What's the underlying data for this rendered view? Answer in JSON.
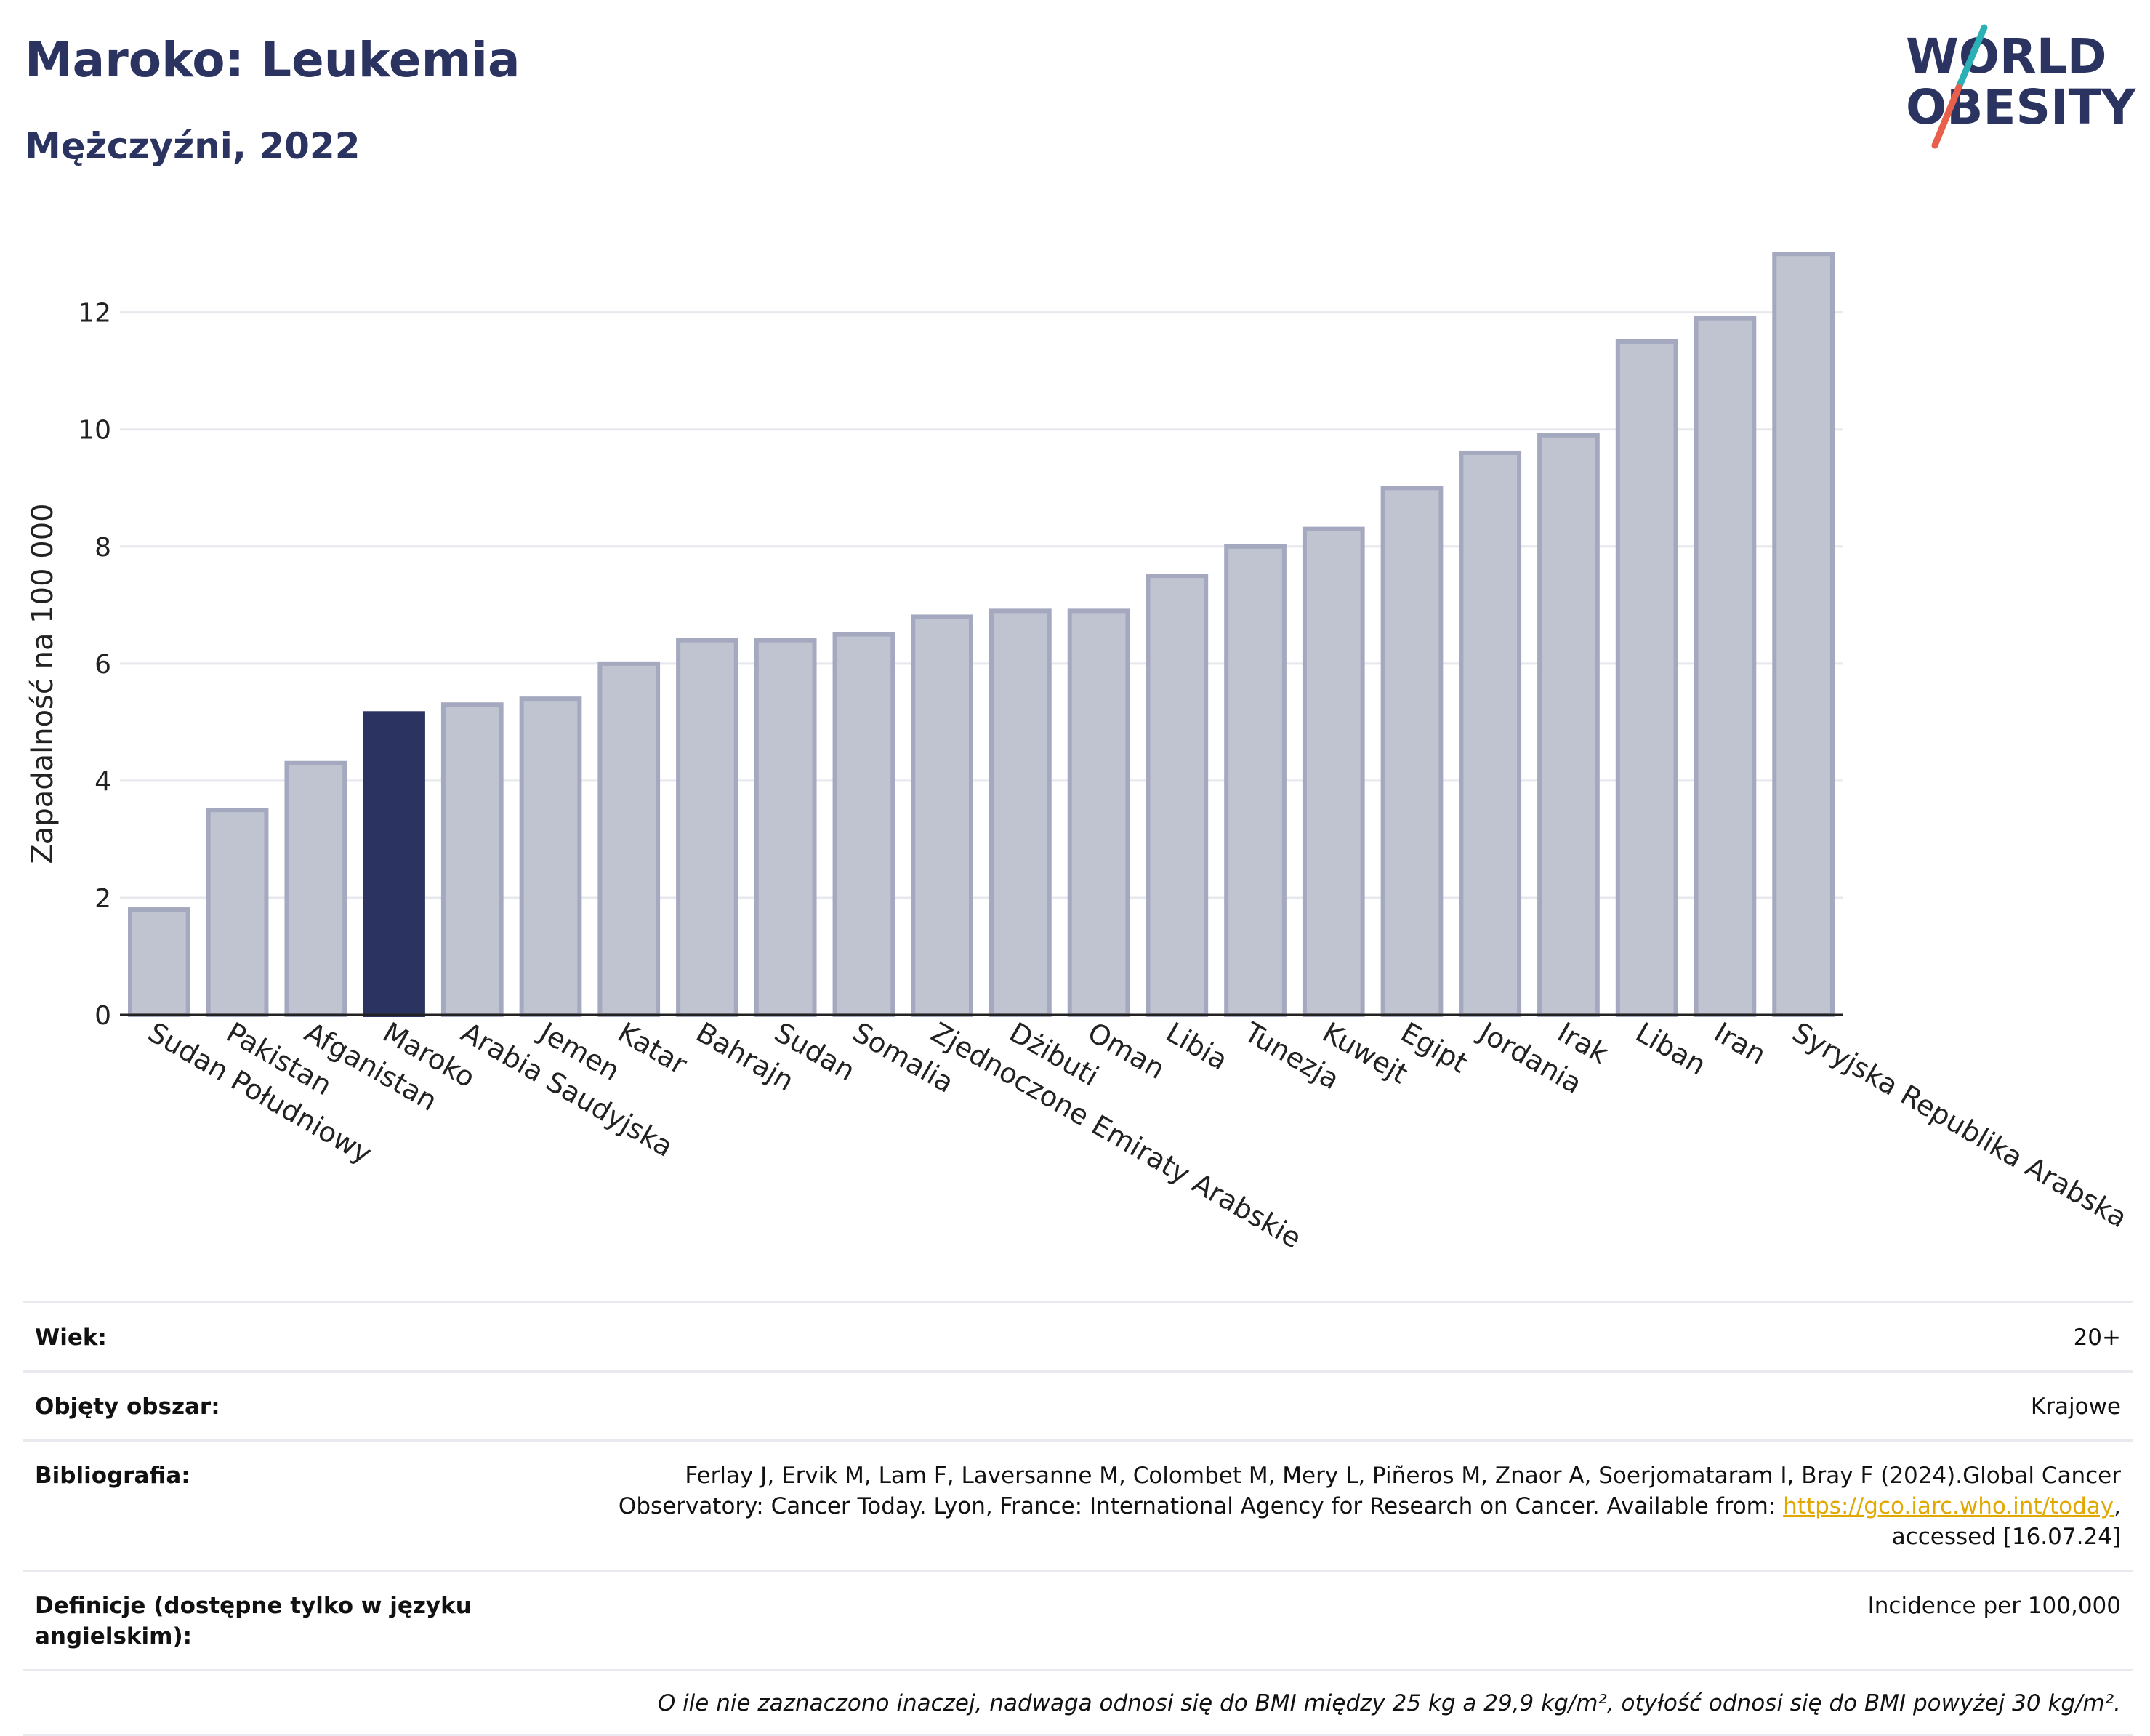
{
  "header": {
    "title": "Maroko: Leukemia",
    "subtitle": "Mężczyźni, 2022"
  },
  "logo": {
    "line1": "WORLD",
    "line2": "OBESITY",
    "colors": {
      "text": "#2b3461",
      "slash_teal": "#2ab0b5",
      "slash_red": "#e8604c"
    }
  },
  "chart_data": {
    "type": "bar",
    "ylabel": "Zapadalność na 100 000",
    "xlabel": "",
    "ylim": [
      0,
      13.3
    ],
    "yticks": [
      0,
      2,
      4,
      6,
      8,
      10,
      12
    ],
    "grid": true,
    "highlight_category": "Maroko",
    "colors": {
      "bar": "#c0c3d0",
      "bar_stroke": "#a4a9bf",
      "highlight": "#2b3461"
    },
    "categories": [
      "Sudan Południowy",
      "Pakistan",
      "Afganistan",
      "Maroko",
      "Arabia Saudyjska",
      "Jemen",
      "Katar",
      "Bahrajn",
      "Sudan",
      "Somalia",
      "Zjednoczone Emiraty Arabskie",
      "Dżibuti",
      "Oman",
      "Libia",
      "Tunezja",
      "Kuwejt",
      "Egipt",
      "Jordania",
      "Irak",
      "Liban",
      "Iran",
      "Syryjska Republika Arabska"
    ],
    "values": [
      1.8,
      3.5,
      4.3,
      5.15,
      5.3,
      5.4,
      6.0,
      6.4,
      6.4,
      6.5,
      6.8,
      6.9,
      6.9,
      7.5,
      8.0,
      8.3,
      9.0,
      9.6,
      9.9,
      11.5,
      11.9,
      13.0
    ]
  },
  "meta": {
    "age_label": "Wiek:",
    "age_value": "20+",
    "coverage_label": "Objęty obszar:",
    "coverage_value": "Krajowe",
    "bib_label": "Bibliografia:",
    "bib_text1": "Ferlay J, Ervik M, Lam F, Laversanne M, Colombet M, Mery L, Piñeros M, Znaor A, Soerjomataram I, Bray F (2024).Global Cancer",
    "bib_text2": "Observatory: Cancer Today. Lyon, France: International Agency for Research on Cancer. Available from: ",
    "bib_link": "https://gco.iarc.who.int/today",
    "bib_text3": ",",
    "bib_text4": "accessed [16.07.24]",
    "def_label": "Definicje (dostępne tylko w języku angielskim):",
    "def_value": "Incidence per 100,000",
    "note": "O ile nie zaznaczono inaczej, nadwaga odnosi się do BMI między 25 kg a 29,9 kg/m², otyłość odnosi się do BMI powyżej 30 kg/m²."
  }
}
